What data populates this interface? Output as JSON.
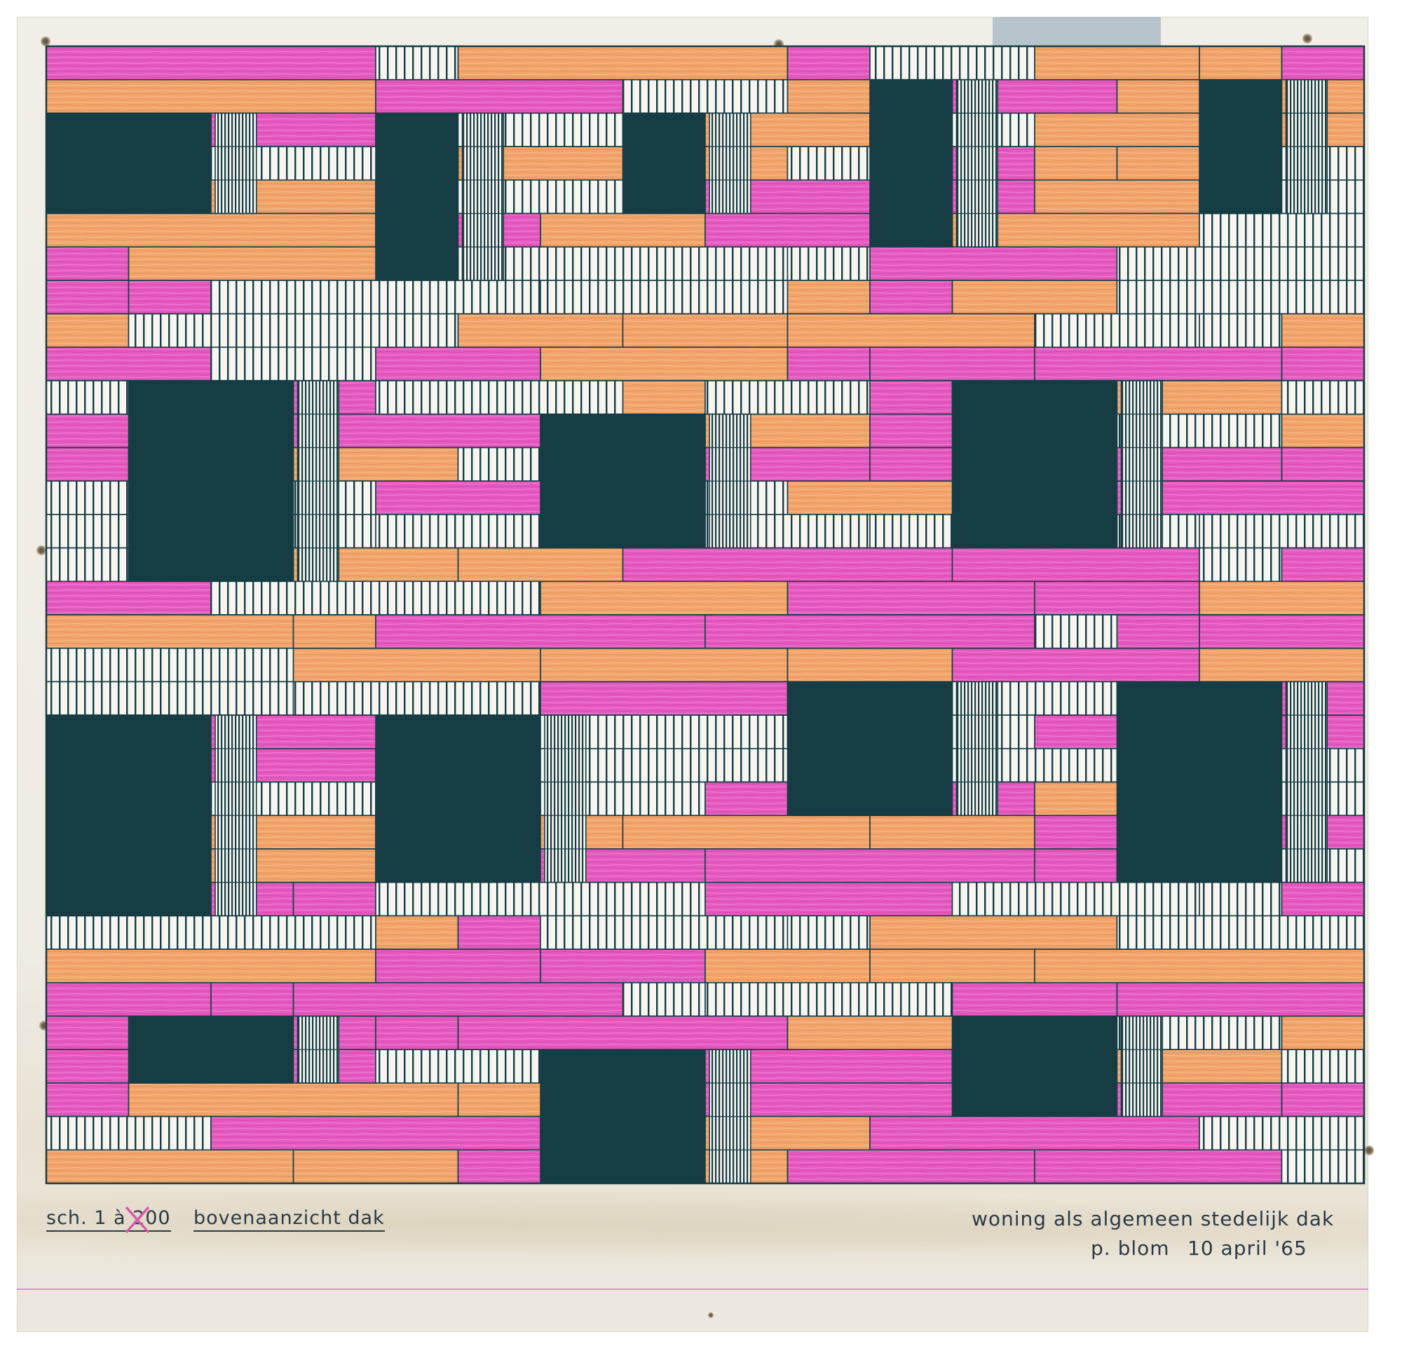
{
  "colors": {
    "line": "#163c44",
    "dark": "#163c44",
    "magenta": "#e55ac0",
    "orange": "#f2a46b",
    "paper": "#f1eee7",
    "stripe_bg": "#f7f5f0"
  },
  "notes": {
    "scale": "sch. 1 à 200",
    "title": "bovenaanzicht dak",
    "subtitle": "woning als algemeen stedelijk dak",
    "author": "p. blom",
    "date": "10 april '65"
  }
}
